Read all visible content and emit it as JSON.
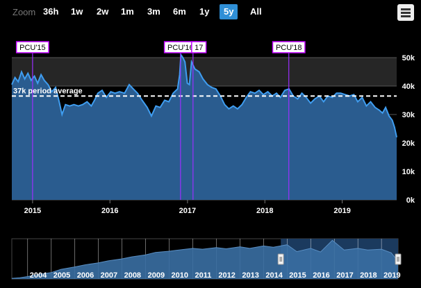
{
  "toolbar": {
    "zoom_label": "Zoom",
    "buttons": [
      "36h",
      "1w",
      "2w",
      "1m",
      "3m",
      "6m",
      "1y",
      "5y",
      "All"
    ],
    "active": "5y",
    "menu_icon": "hamburger-menu-icon"
  },
  "colors": {
    "background": "#000000",
    "plot_band_upper": "#262626",
    "area_fill": "#2a5c8f",
    "line": "#3f9df0",
    "flag_line": "#9b30ff",
    "flag_border": "#c100ff",
    "average_line": "#ffffff",
    "active_button": "#2f8fd6",
    "navigator_fill": "#3a6fa3",
    "navigator_selection": "#1b3a5e"
  },
  "chart_data": {
    "type": "area",
    "xlim": [
      "2014-09-25",
      "2019-09-15"
    ],
    "ylim": [
      0,
      50000
    ],
    "y_ticks": [
      {
        "v": 0,
        "label": "0k"
      },
      {
        "v": 10000,
        "label": "10k"
      },
      {
        "v": 20000,
        "label": "20k"
      },
      {
        "v": 30000,
        "label": "30k"
      },
      {
        "v": 40000,
        "label": "40k"
      },
      {
        "v": 50000,
        "label": "50k"
      }
    ],
    "x_ticks": [
      {
        "date": "2015-01-01",
        "label": "2015"
      },
      {
        "date": "2016-01-01",
        "label": "2016"
      },
      {
        "date": "2017-01-01",
        "label": "2017"
      },
      {
        "date": "2018-01-01",
        "label": "2018"
      },
      {
        "date": "2019-01-01",
        "label": "2019"
      }
    ],
    "average": {
      "value": 36500,
      "label": "37k period average"
    },
    "flags": [
      {
        "date": "2015-01-01",
        "label": "PCU'15"
      },
      {
        "date": "2016-11-29",
        "label": "PCU'16"
      },
      {
        "date": "2017-01-27",
        "label": "17"
      },
      {
        "date": "2018-04-24",
        "label": "PCU'18"
      }
    ],
    "series": [
      {
        "points": [
          [
            "2014-09-25",
            40500
          ],
          [
            "2014-10-10",
            43000
          ],
          [
            "2014-10-25",
            41500
          ],
          [
            "2014-11-10",
            45000
          ],
          [
            "2014-11-25",
            42500
          ],
          [
            "2014-12-10",
            44500
          ],
          [
            "2014-12-25",
            42000
          ],
          [
            "2015-01-10",
            43500
          ],
          [
            "2015-01-25",
            41000
          ],
          [
            "2015-02-10",
            44000
          ],
          [
            "2015-02-25",
            42000
          ],
          [
            "2015-03-15",
            40500
          ],
          [
            "2015-04-01",
            38000
          ],
          [
            "2015-04-20",
            39500
          ],
          [
            "2015-05-05",
            35000
          ],
          [
            "2015-05-20",
            30000
          ],
          [
            "2015-06-05",
            33500
          ],
          [
            "2015-06-25",
            33000
          ],
          [
            "2015-07-15",
            33500
          ],
          [
            "2015-08-05",
            33000
          ],
          [
            "2015-08-25",
            33500
          ],
          [
            "2015-09-15",
            34500
          ],
          [
            "2015-10-05",
            33000
          ],
          [
            "2015-10-20",
            35000
          ],
          [
            "2015-11-05",
            37500
          ],
          [
            "2015-11-25",
            38500
          ],
          [
            "2015-12-15",
            36000
          ],
          [
            "2016-01-05",
            38000
          ],
          [
            "2016-01-25",
            37500
          ],
          [
            "2016-02-15",
            38000
          ],
          [
            "2016-03-10",
            37500
          ],
          [
            "2016-04-01",
            40500
          ],
          [
            "2016-04-20",
            39000
          ],
          [
            "2016-05-10",
            37500
          ],
          [
            "2016-06-01",
            35000
          ],
          [
            "2016-06-25",
            32500
          ],
          [
            "2016-07-15",
            29500
          ],
          [
            "2016-08-05",
            33000
          ],
          [
            "2016-08-25",
            32500
          ],
          [
            "2016-09-15",
            35000
          ],
          [
            "2016-10-05",
            34500
          ],
          [
            "2016-10-25",
            37500
          ],
          [
            "2016-11-15",
            39000
          ],
          [
            "2016-11-25",
            44000
          ],
          [
            "2016-12-01",
            51000
          ],
          [
            "2016-12-10",
            50000
          ],
          [
            "2016-12-20",
            48500
          ],
          [
            "2016-12-31",
            41000
          ],
          [
            "2017-01-10",
            40500
          ],
          [
            "2017-01-20",
            48500
          ],
          [
            "2017-02-05",
            46000
          ],
          [
            "2017-02-25",
            45000
          ],
          [
            "2017-03-15",
            42500
          ],
          [
            "2017-04-05",
            40500
          ],
          [
            "2017-04-25",
            39500
          ],
          [
            "2017-05-15",
            39000
          ],
          [
            "2017-06-05",
            36500
          ],
          [
            "2017-06-25",
            33500
          ],
          [
            "2017-07-15",
            32000
          ],
          [
            "2017-08-05",
            33000
          ],
          [
            "2017-08-25",
            32000
          ],
          [
            "2017-09-15",
            33500
          ],
          [
            "2017-10-05",
            36000
          ],
          [
            "2017-10-25",
            38000
          ],
          [
            "2017-11-15",
            37500
          ],
          [
            "2017-12-05",
            38500
          ],
          [
            "2017-12-25",
            37000
          ],
          [
            "2018-01-15",
            38000
          ],
          [
            "2018-02-05",
            36500
          ],
          [
            "2018-02-25",
            37500
          ],
          [
            "2018-03-15",
            36000
          ],
          [
            "2018-04-05",
            38500
          ],
          [
            "2018-04-25",
            39000
          ],
          [
            "2018-05-15",
            36500
          ],
          [
            "2018-06-05",
            35500
          ],
          [
            "2018-06-25",
            37500
          ],
          [
            "2018-07-15",
            36000
          ],
          [
            "2018-08-05",
            34000
          ],
          [
            "2018-08-25",
            35500
          ],
          [
            "2018-09-15",
            36500
          ],
          [
            "2018-10-05",
            34500
          ],
          [
            "2018-10-25",
            36500
          ],
          [
            "2018-11-15",
            36000
          ],
          [
            "2018-12-05",
            37500
          ],
          [
            "2018-12-25",
            37500
          ],
          [
            "2019-01-15",
            37000
          ],
          [
            "2019-02-05",
            36500
          ],
          [
            "2019-02-25",
            37000
          ],
          [
            "2019-03-15",
            34500
          ],
          [
            "2019-04-05",
            36000
          ],
          [
            "2019-04-25",
            33000
          ],
          [
            "2019-05-15",
            34500
          ],
          [
            "2019-06-05",
            32500
          ],
          [
            "2019-06-25",
            31500
          ],
          [
            "2019-07-10",
            30500
          ],
          [
            "2019-07-25",
            32500
          ],
          [
            "2019-08-10",
            29500
          ],
          [
            "2019-08-25",
            28000
          ],
          [
            "2019-09-05",
            25500
          ],
          [
            "2019-09-15",
            22000
          ]
        ]
      }
    ],
    "navigator": {
      "xlim": [
        "2003-05-01",
        "2019-09-15"
      ],
      "labels": [
        "2004",
        "2005",
        "2006",
        "2007",
        "2008",
        "2009",
        "2010",
        "2011",
        "2012",
        "2013",
        "2014",
        "2015",
        "2016",
        "2017",
        "2018",
        "2019"
      ],
      "selection": [
        "2014-09-25",
        "2019-09-15"
      ],
      "points": [
        [
          "2003-05-01",
          800
        ],
        [
          "2003-09-01",
          1500
        ],
        [
          "2004-01-01",
          3000
        ],
        [
          "2004-06-01",
          5500
        ],
        [
          "2005-01-01",
          8000
        ],
        [
          "2005-06-01",
          12000
        ],
        [
          "2006-01-01",
          15000
        ],
        [
          "2006-06-01",
          17500
        ],
        [
          "2007-01-01",
          20000
        ],
        [
          "2007-06-01",
          22500
        ],
        [
          "2008-01-01",
          25000
        ],
        [
          "2008-06-01",
          27500
        ],
        [
          "2009-01-01",
          30000
        ],
        [
          "2009-06-01",
          33000
        ],
        [
          "2010-01-01",
          34500
        ],
        [
          "2010-06-01",
          36000
        ],
        [
          "2011-01-01",
          38000
        ],
        [
          "2011-06-01",
          37000
        ],
        [
          "2012-01-01",
          39000
        ],
        [
          "2012-06-01",
          37500
        ],
        [
          "2013-01-01",
          40000
        ],
        [
          "2013-06-01",
          38000
        ],
        [
          "2014-01-01",
          41000
        ],
        [
          "2014-06-01",
          39500
        ],
        [
          "2015-01-01",
          42500
        ],
        [
          "2015-06-01",
          34000
        ],
        [
          "2016-01-01",
          38000
        ],
        [
          "2016-06-01",
          33500
        ],
        [
          "2016-12-01",
          48000
        ],
        [
          "2017-06-01",
          36000
        ],
        [
          "2018-01-01",
          38000
        ],
        [
          "2018-06-01",
          36000
        ],
        [
          "2019-01-01",
          37000
        ],
        [
          "2019-06-01",
          32500
        ],
        [
          "2019-09-15",
          22000
        ]
      ]
    }
  }
}
